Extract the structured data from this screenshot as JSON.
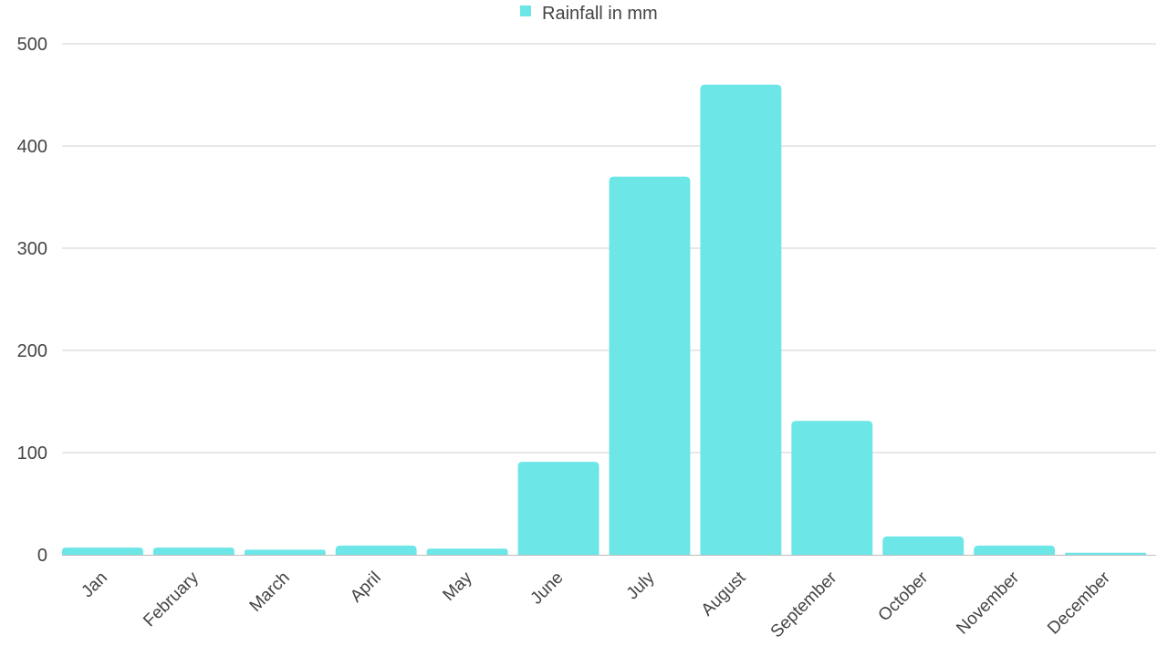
{
  "chart_data": {
    "type": "bar",
    "categories": [
      "Jan",
      "February",
      "March",
      "April",
      "May",
      "June",
      "July",
      "August",
      "September",
      "October",
      "November",
      "December"
    ],
    "series": [
      {
        "name": "Rainfall in mm",
        "values": [
          7,
          7,
          5,
          9,
          6,
          91,
          370,
          460,
          131,
          18,
          9,
          2
        ]
      }
    ],
    "title": "",
    "xlabel": "",
    "ylabel": "",
    "ylim": [
      0,
      500
    ],
    "yticks": [
      "0",
      "100",
      "200",
      "300",
      "400",
      "500"
    ],
    "grid": true,
    "legend_position": "top-center",
    "bar_color": "#6ce6e6",
    "grid_color": "#d0d0d0"
  }
}
